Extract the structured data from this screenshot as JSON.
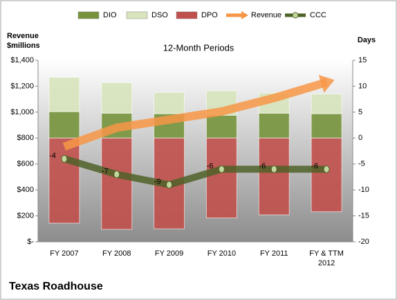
{
  "chart_data": {
    "type": "combo",
    "title": "12-Month Periods",
    "company": "Texas Roadhouse",
    "y_label": "Revenue $millions",
    "y2_label": "Days",
    "categories": [
      "FY 2007",
      "FY 2008",
      "FY 2009",
      "FY 2010",
      "FY 2011",
      "FY & TTM 2012"
    ],
    "ylim": [
      0,
      1400
    ],
    "yticks": [
      {
        "value": 0,
        "label": "$-"
      },
      {
        "value": 200,
        "label": "$200"
      },
      {
        "value": 400,
        "label": "$400"
      },
      {
        "value": 600,
        "label": "$600"
      },
      {
        "value": 800,
        "label": "$800"
      },
      {
        "value": 1000,
        "label": "$1,000"
      },
      {
        "value": 1200,
        "label": "$1,200"
      },
      {
        "value": 1400,
        "label": "$1,400"
      }
    ],
    "y2lim": [
      -20,
      15
    ],
    "y2ticks": [
      -20,
      -15,
      -10,
      -5,
      0,
      5,
      10,
      15
    ],
    "series": [
      {
        "name": "DIO",
        "type": "bar",
        "axis": "y2",
        "color": "#77933c",
        "values": [
          5.1,
          4.8,
          4.7,
          4.4,
          4.8,
          4.7
        ]
      },
      {
        "name": "DSO",
        "type": "bar",
        "axis": "y2",
        "color": "#d7e4bd",
        "values": [
          6.6,
          5.9,
          4.1,
          4.7,
          3.9,
          3.8
        ]
      },
      {
        "name": "DPO",
        "type": "bar",
        "axis": "y2",
        "color": "#c0504d",
        "values": [
          -16.4,
          -17.6,
          -17.5,
          -15.4,
          -14.8,
          -14.2
        ]
      },
      {
        "name": "Revenue",
        "type": "arrow",
        "color": "#f79646",
        "values": [
          734,
          880,
          942,
          1005,
          1109,
          1230
        ]
      },
      {
        "name": "CCC",
        "type": "line",
        "axis": "y2",
        "color": "#4f6228",
        "values": [
          -4,
          -7,
          -9,
          -6,
          -6,
          -6
        ]
      }
    ]
  }
}
